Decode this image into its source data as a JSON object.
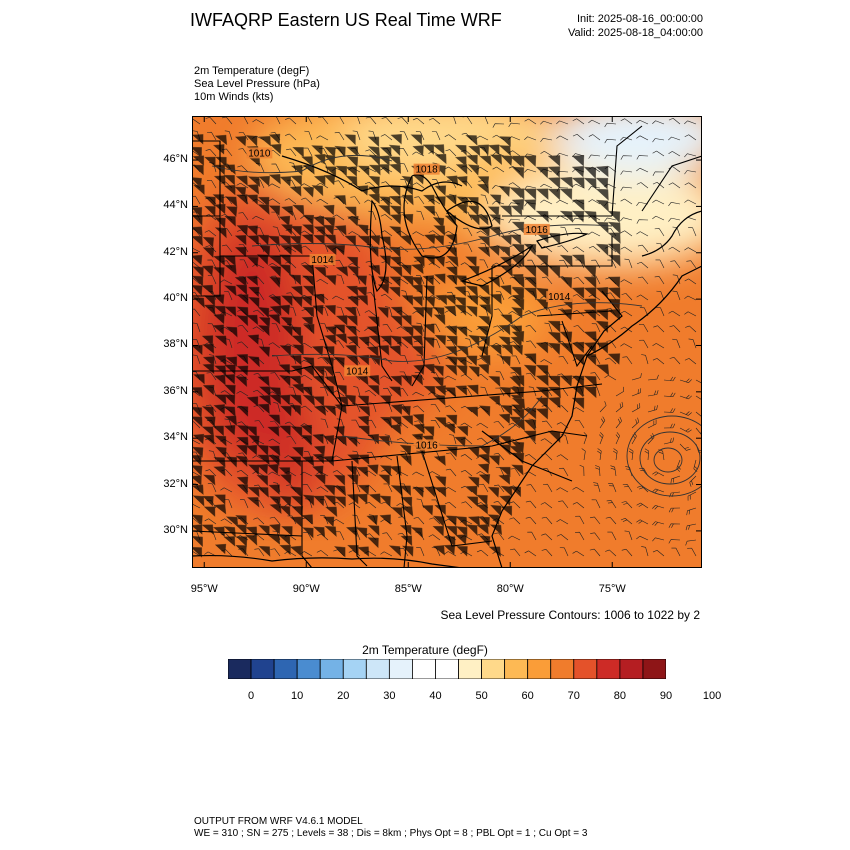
{
  "header": {
    "title": "IWFAQRP Eastern US Real Time WRF",
    "init": "Init: 2025-08-16_00:00:00",
    "valid": "Valid: 2025-08-18_04:00:00"
  },
  "variables": [
    "2m Temperature   (degF)",
    "Sea Level Pressure   (hPa)",
    "10m Winds   (kts)"
  ],
  "map": {
    "lat_range": [
      28.4,
      47.9
    ],
    "lon_range": [
      -95.6,
      -70.6
    ],
    "lat_labels": [
      "30°N",
      "32°N",
      "34°N",
      "36°N",
      "38°N",
      "40°N",
      "42°N",
      "44°N",
      "46°N"
    ],
    "lat_values": [
      30,
      32,
      34,
      36,
      38,
      40,
      42,
      44,
      46
    ],
    "lon_labels": [
      "95°W",
      "90°W",
      "85°W",
      "80°W",
      "75°W"
    ],
    "lon_values": [
      -95,
      -90,
      -85,
      -80,
      -75
    ],
    "slp_contour_labels": [
      {
        "text": "1010",
        "lon": -92.3,
        "lat": 46.2
      },
      {
        "text": "1018",
        "lon": -84.1,
        "lat": 45.5
      },
      {
        "text": "1014",
        "lon": -89.2,
        "lat": 41.6
      },
      {
        "text": "1016",
        "lon": -78.7,
        "lat": 42.9
      },
      {
        "text": "1014",
        "lon": -77.6,
        "lat": 40.0
      },
      {
        "text": "1014",
        "lon": -87.5,
        "lat": 36.8
      },
      {
        "text": "1016",
        "lon": -84.1,
        "lat": 33.6
      }
    ],
    "slp_note": "Sea Level Pressure Contours: 1006 to 1022 by 2"
  },
  "colorbar": {
    "title": "2m Temperature  (degF)",
    "colors": [
      "#1a2a5e",
      "#20438f",
      "#2e66b2",
      "#4a8cd0",
      "#74b2e6",
      "#a5d3f4",
      "#cde6f8",
      "#e5f2fb",
      "#ffffff",
      "#ffffff",
      "#fff0c4",
      "#ffd98a",
      "#fdb954",
      "#fa9d38",
      "#f07c2c",
      "#e4522a",
      "#cd2b26",
      "#b51e22",
      "#8e1517"
    ],
    "labels": [
      "0",
      "10",
      "20",
      "30",
      "40",
      "50",
      "60",
      "70",
      "80",
      "90",
      "100"
    ]
  },
  "footer": {
    "line1": "OUTPUT FROM WRF V4.6.1 MODEL",
    "line2": "WE = 310 ; SN = 275 ; Levels = 38 ; Dis = 8km ; Phys Opt = 8 ; PBL Opt = 1 ; Cu Opt = 3"
  }
}
